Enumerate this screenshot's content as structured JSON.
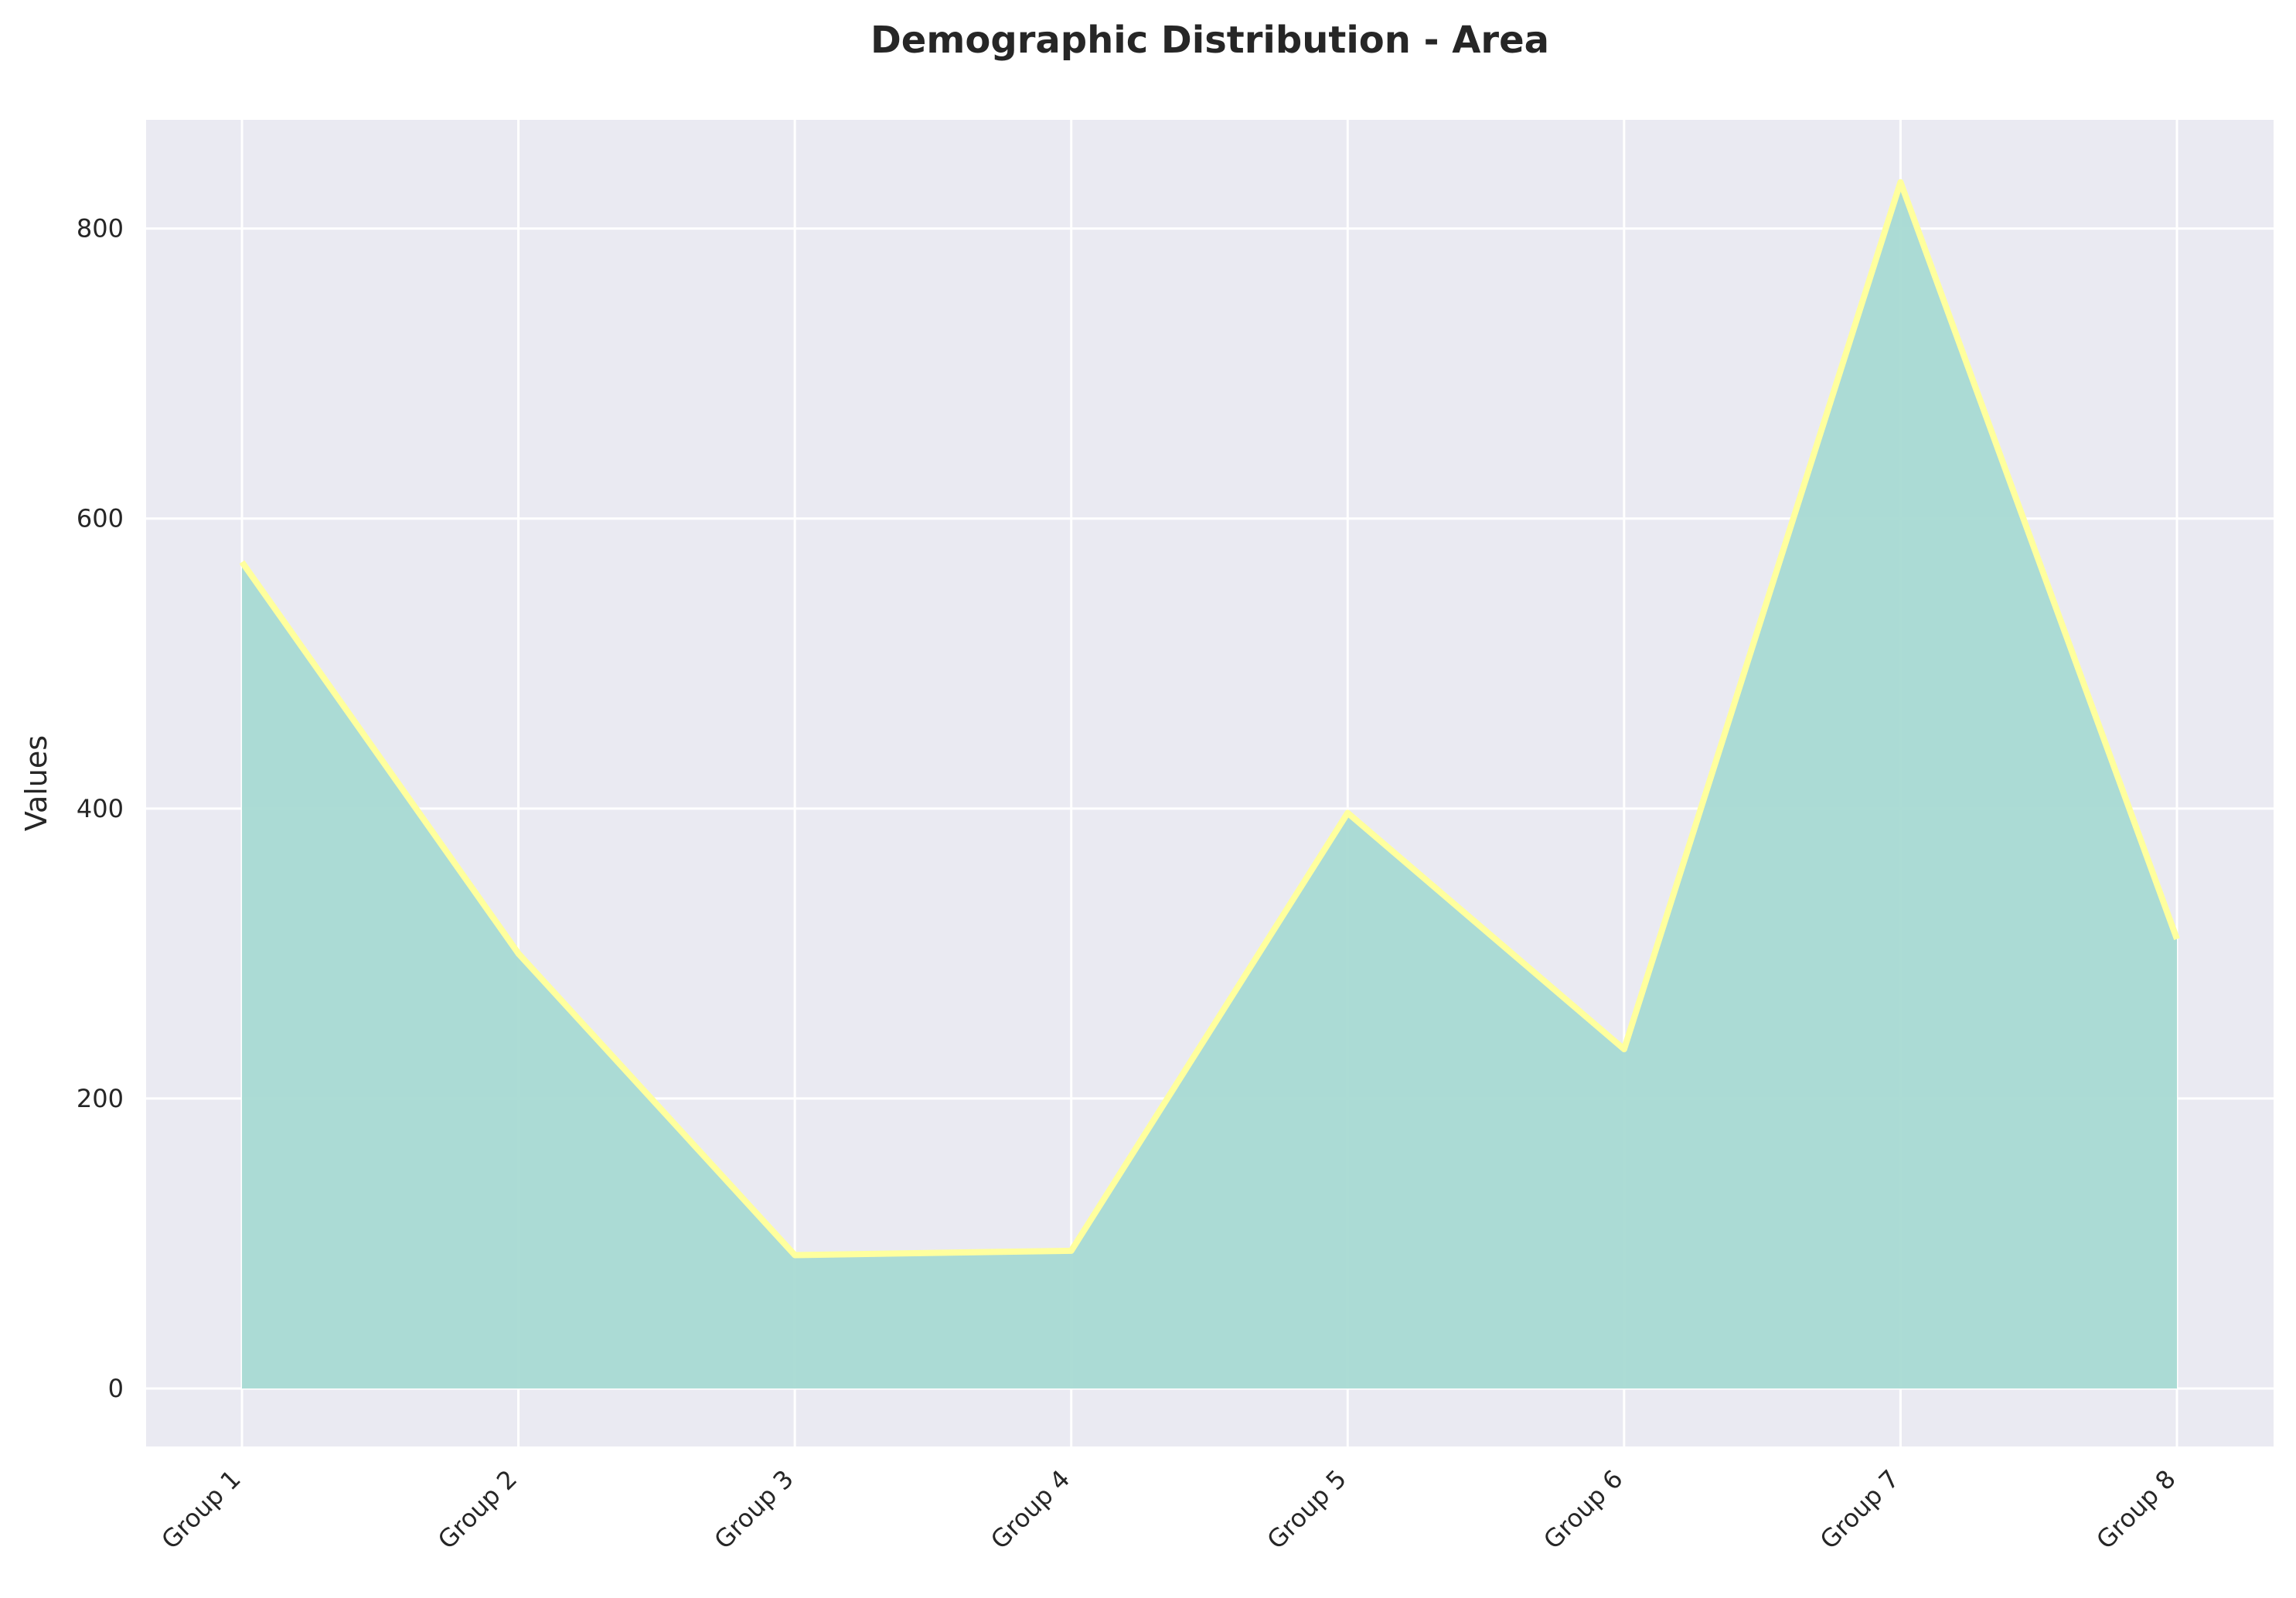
{
  "chart_data": {
    "type": "area",
    "title": "Demographic Distribution - Area",
    "xlabel": "",
    "ylabel": "Values",
    "categories": [
      "Group 1",
      "Group 2",
      "Group 3",
      "Group 4",
      "Group 5",
      "Group 6",
      "Group 7",
      "Group 8"
    ],
    "series": [
      {
        "values": [
          570,
          300,
          92,
          95,
          397,
          234,
          832,
          310
        ]
      }
    ],
    "ylim": [
      -40,
      875
    ],
    "yticks": [
      0,
      200,
      400,
      600,
      800
    ],
    "grid": true,
    "legend": "none",
    "colors": {
      "background": "#eaeaf2",
      "fill": "#a8dad3",
      "line": "#ffff9e",
      "grid": "#ffffff",
      "text": "#262626"
    }
  }
}
